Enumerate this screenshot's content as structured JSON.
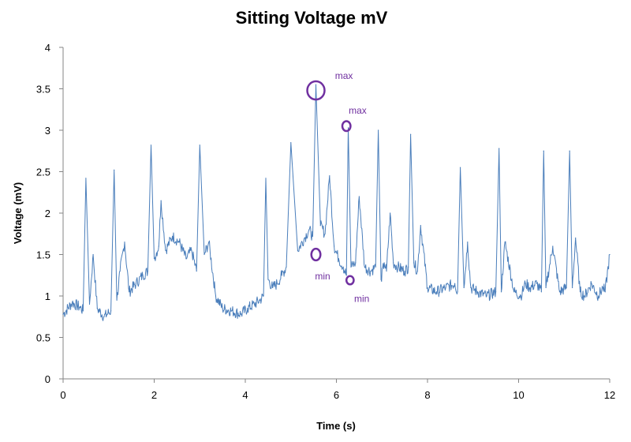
{
  "chart_data": {
    "type": "line",
    "title": "Sitting Voltage mV",
    "xlabel": "Time (s)",
    "ylabel": "Voltage (mV)",
    "xlim": [
      0,
      12
    ],
    "ylim": [
      0,
      4
    ],
    "x_ticks": [
      0,
      2,
      4,
      6,
      8,
      10,
      12
    ],
    "x_tick_labels": [
      "0",
      "2",
      "4",
      "6",
      "8",
      "10",
      "12"
    ],
    "y_ticks": [
      0,
      0.5,
      1,
      1.5,
      2,
      2.5,
      3,
      3.5,
      4
    ],
    "y_tick_labels": [
      "0",
      "0.5",
      "1",
      "1.5",
      "2",
      "2.5",
      "3",
      "3.5",
      "4"
    ],
    "grid": false,
    "legend": "none",
    "line_color": "#4a7ebb",
    "annotation_color": "#7030a0",
    "series": [
      {
        "x": [
          0,
          0.2,
          0.38,
          0.44,
          0.5,
          0.58,
          0.66,
          0.75,
          0.9,
          1.05,
          1.12,
          1.18,
          1.25,
          1.35,
          1.45,
          1.6,
          1.75,
          1.86,
          1.93,
          2.0,
          2.1,
          2.15,
          2.25,
          2.4,
          2.55,
          2.7,
          2.82,
          2.93,
          3.0,
          3.1,
          3.2,
          3.35,
          3.5,
          3.7,
          3.9,
          4.05,
          4.2,
          4.32,
          4.4,
          4.45,
          4.5,
          4.6,
          4.7,
          4.8,
          4.9,
          5.0,
          5.15,
          5.3,
          5.4,
          5.48,
          5.55,
          5.65,
          5.75,
          5.85,
          5.95,
          6.05,
          6.15,
          6.22,
          6.26,
          6.32,
          6.42,
          6.5,
          6.62,
          6.75,
          6.86,
          6.92,
          6.98,
          7.05,
          7.1,
          7.18,
          7.25,
          7.35,
          7.5,
          7.58,
          7.63,
          7.7,
          7.78,
          7.85,
          8.0,
          8.2,
          8.4,
          8.6,
          8.66,
          8.72,
          8.8,
          8.88,
          8.95,
          9.1,
          9.3,
          9.5,
          9.57,
          9.62,
          9.7,
          9.9,
          10.05,
          10.15,
          10.25,
          10.4,
          10.5,
          10.55,
          10.6,
          10.75,
          10.9,
          11.05,
          11.12,
          11.18,
          11.25,
          11.35,
          11.45,
          11.6,
          11.75,
          11.85,
          11.9,
          12.0
        ],
        "y": [
          0.78,
          0.92,
          0.86,
          0.82,
          2.42,
          0.9,
          1.5,
          0.85,
          0.75,
          0.82,
          2.52,
          0.95,
          1.3,
          1.65,
          1.05,
          1.15,
          1.25,
          1.3,
          2.82,
          1.45,
          1.6,
          2.15,
          1.55,
          1.72,
          1.65,
          1.45,
          1.55,
          1.3,
          2.82,
          1.5,
          1.65,
          1.0,
          0.85,
          0.82,
          0.78,
          0.85,
          0.9,
          0.95,
          1.0,
          2.42,
          1.2,
          1.1,
          1.15,
          1.25,
          1.35,
          2.85,
          1.55,
          1.7,
          1.8,
          1.72,
          3.55,
          1.85,
          1.75,
          2.45,
          1.6,
          1.45,
          1.35,
          1.25,
          3.03,
          1.35,
          1.4,
          2.2,
          1.35,
          1.3,
          1.35,
          3.0,
          1.2,
          1.4,
          1.3,
          2.0,
          1.4,
          1.35,
          1.3,
          1.35,
          2.95,
          1.4,
          1.3,
          1.85,
          1.1,
          1.05,
          1.1,
          1.15,
          1.05,
          2.55,
          1.1,
          1.65,
          1.1,
          1.05,
          1.0,
          1.05,
          2.78,
          1.05,
          1.65,
          1.05,
          1.0,
          1.15,
          1.1,
          1.15,
          1.05,
          2.75,
          1.1,
          1.6,
          1.05,
          1.1,
          2.75,
          1.1,
          1.7,
          1.05,
          1.0,
          1.15,
          1.0,
          1.1,
          1.05,
          1.5
        ]
      }
    ],
    "annotations": [
      {
        "text": "max",
        "x": 5.55,
        "y": 3.48,
        "label_x": 5.97,
        "label_y": 3.62,
        "r_x": 0.19,
        "r_y": 0.11
      },
      {
        "text": "max",
        "x": 6.22,
        "y": 3.05,
        "label_x": 6.27,
        "label_y": 3.2,
        "r_x": 0.09,
        "r_y": 0.06
      },
      {
        "text": "min",
        "x": 5.55,
        "y": 1.5,
        "label_x": 5.53,
        "label_y": 1.2,
        "r_x": 0.1,
        "r_y": 0.07
      },
      {
        "text": "min",
        "x": 6.3,
        "y": 1.19,
        "label_x": 6.39,
        "label_y": 0.93,
        "r_x": 0.08,
        "r_y": 0.05
      }
    ]
  }
}
